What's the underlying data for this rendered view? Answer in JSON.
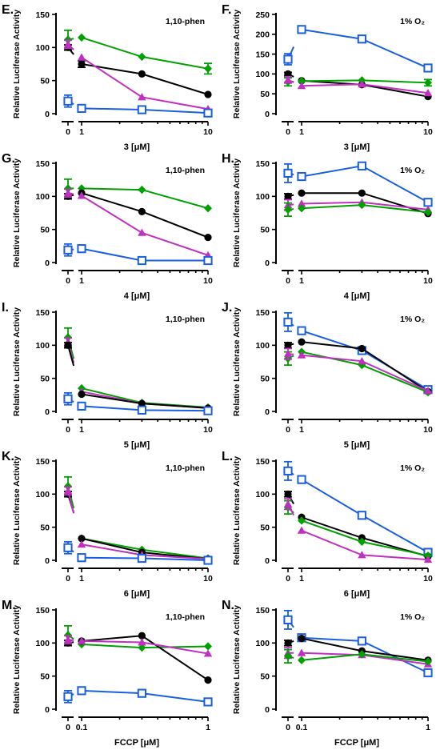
{
  "chart_data": [
    {
      "type": "line",
      "panel": "E.",
      "condition": "1,10-phen",
      "xlabel": "3 [μM]",
      "ylabel": "Relative Luciferase Activity",
      "ylim": [
        0,
        150
      ],
      "yticks": [
        "0",
        "50",
        "100",
        "150"
      ],
      "x": [
        1,
        3,
        10
      ],
      "xticks": [
        "0",
        "1",
        "10"
      ],
      "control_ticks": [
        "0"
      ],
      "series": [
        {
          "color": "#00a000",
          "marker": "diamond",
          "control": 112,
          "control_err": 14,
          "values": [
            115,
            86,
            68
          ],
          "errors": [
            0,
            0,
            8
          ]
        },
        {
          "color": "#000000",
          "marker": "circle",
          "control": 100,
          "control_err": 4,
          "values": [
            75,
            60,
            29
          ],
          "errors": [
            5,
            0,
            0
          ]
        },
        {
          "color": "#c030c0",
          "marker": "triangle",
          "control": 105,
          "control_err": 6,
          "values": [
            85,
            25,
            7
          ],
          "errors": [
            0,
            0,
            0
          ]
        },
        {
          "color": "#1a5fe0",
          "marker": "square",
          "control": 19,
          "control_err": 9,
          "values": [
            8,
            6,
            1
          ],
          "errors": [
            0,
            0,
            0
          ]
        }
      ]
    },
    {
      "type": "line",
      "panel": "F.",
      "condition": "1% O₂",
      "xlabel": "3 [μM]",
      "ylabel": "Relative Luciferase Activity",
      "ylim": [
        0,
        250
      ],
      "yticks": [
        "0",
        "50",
        "100",
        "150",
        "200",
        "250"
      ],
      "x": [
        1,
        3,
        10
      ],
      "xticks": [
        "0",
        "1",
        "10"
      ],
      "control_ticks": [
        "0"
      ],
      "series": [
        {
          "color": "#1a5fe0",
          "marker": "square",
          "control": 137,
          "control_err": 14,
          "values": [
            212,
            188,
            115
          ],
          "errors": [
            0,
            0,
            0
          ]
        },
        {
          "color": "#000000",
          "marker": "circle",
          "control": 100,
          "control_err": 4,
          "values": [
            83,
            73,
            43
          ],
          "errors": [
            0,
            0,
            0
          ]
        },
        {
          "color": "#00a000",
          "marker": "diamond",
          "control": 80,
          "control_err": 10,
          "values": [
            82,
            84,
            78
          ],
          "errors": [
            0,
            0,
            8
          ]
        },
        {
          "color": "#c030c0",
          "marker": "triangle",
          "control": 85,
          "control_err": 8,
          "values": [
            70,
            74,
            52
          ],
          "errors": [
            0,
            0,
            0
          ]
        }
      ]
    },
    {
      "type": "line",
      "panel": "G.",
      "condition": "1,10-phen",
      "xlabel": "4 [μM]",
      "ylabel": "Relative Luciferase Activity",
      "ylim": [
        0,
        150
      ],
      "yticks": [
        "0",
        "50",
        "100",
        "150"
      ],
      "x": [
        1,
        3,
        10
      ],
      "xticks": [
        "0",
        "1",
        "10"
      ],
      "control_ticks": [
        "0"
      ],
      "series": [
        {
          "color": "#00a000",
          "marker": "diamond",
          "control": 112,
          "control_err": 14,
          "values": [
            112,
            110,
            82
          ],
          "errors": [
            0,
            0,
            0
          ]
        },
        {
          "color": "#000000",
          "marker": "circle",
          "control": 100,
          "control_err": 4,
          "values": [
            105,
            77,
            38
          ],
          "errors": [
            0,
            0,
            0
          ]
        },
        {
          "color": "#c030c0",
          "marker": "triangle",
          "control": 105,
          "control_err": 6,
          "values": [
            101,
            45,
            11
          ],
          "errors": [
            0,
            0,
            0
          ]
        },
        {
          "color": "#1a5fe0",
          "marker": "square",
          "control": 19,
          "control_err": 9,
          "values": [
            21,
            3,
            3
          ],
          "errors": [
            0,
            0,
            0
          ]
        }
      ]
    },
    {
      "type": "line",
      "panel": "H.",
      "condition": "1% O₂",
      "xlabel": "4 [μM]",
      "ylabel": "Relative Luciferase Activity",
      "ylim": [
        0,
        150
      ],
      "yticks": [
        "0",
        "50",
        "100",
        "150"
      ],
      "x": [
        1,
        3,
        10
      ],
      "xticks": [
        "0",
        "1",
        "10"
      ],
      "control_ticks": [
        "0"
      ],
      "series": [
        {
          "color": "#1a5fe0",
          "marker": "square",
          "control": 135,
          "control_err": 14,
          "values": [
            130,
            146,
            91
          ],
          "errors": [
            0,
            0,
            0
          ]
        },
        {
          "color": "#000000",
          "marker": "circle",
          "control": 100,
          "control_err": 4,
          "values": [
            105,
            105,
            74
          ],
          "errors": [
            0,
            0,
            0
          ]
        },
        {
          "color": "#c030c0",
          "marker": "triangle",
          "control": 87,
          "control_err": 8,
          "values": [
            89,
            91,
            80
          ],
          "errors": [
            0,
            0,
            0
          ]
        },
        {
          "color": "#00a000",
          "marker": "diamond",
          "control": 80,
          "control_err": 10,
          "values": [
            82,
            87,
            76
          ],
          "errors": [
            0,
            0,
            0
          ]
        }
      ]
    },
    {
      "type": "line",
      "panel": "I.",
      "condition": "1,10-phen",
      "xlabel": "5 [μM]",
      "ylabel": "Relative Luciferase Activity",
      "ylim": [
        0,
        150
      ],
      "yticks": [
        "0",
        "50",
        "100",
        "150"
      ],
      "x": [
        1,
        3,
        10
      ],
      "xticks": [
        "0",
        "1",
        "10"
      ],
      "control_ticks": [
        "0"
      ],
      "series": [
        {
          "color": "#00a000",
          "marker": "diamond",
          "control": 112,
          "control_err": 14,
          "values": [
            35,
            13,
            6
          ],
          "errors": [
            0,
            0,
            0
          ]
        },
        {
          "color": "#c030c0",
          "marker": "triangle",
          "control": 105,
          "control_err": 6,
          "values": [
            30,
            12,
            5
          ],
          "errors": [
            0,
            0,
            0
          ]
        },
        {
          "color": "#000000",
          "marker": "circle",
          "control": 100,
          "control_err": 4,
          "values": [
            26,
            12,
            5
          ],
          "errors": [
            0,
            0,
            0
          ]
        },
        {
          "color": "#1a5fe0",
          "marker": "square",
          "control": 19,
          "control_err": 9,
          "values": [
            8,
            2,
            1
          ],
          "errors": [
            0,
            0,
            0
          ]
        }
      ]
    },
    {
      "type": "line",
      "panel": "J.",
      "condition": "1% O₂",
      "xlabel": "5 [μM]",
      "ylabel": "Relative Luciferase Activity",
      "ylim": [
        0,
        150
      ],
      "yticks": [
        "0",
        "50",
        "100",
        "150"
      ],
      "x": [
        1,
        3,
        10
      ],
      "xticks": [
        "0",
        "1",
        "10"
      ],
      "control_ticks": [
        "0"
      ],
      "series": [
        {
          "color": "#1a5fe0",
          "marker": "square",
          "control": 135,
          "control_err": 14,
          "values": [
            122,
            92,
            33
          ],
          "errors": [
            0,
            0,
            0
          ]
        },
        {
          "color": "#000000",
          "marker": "circle",
          "control": 100,
          "control_err": 4,
          "values": [
            105,
            95,
            30
          ],
          "errors": [
            0,
            0,
            0
          ]
        },
        {
          "color": "#00a000",
          "marker": "diamond",
          "control": 80,
          "control_err": 10,
          "values": [
            90,
            70,
            29
          ],
          "errors": [
            0,
            0,
            0
          ]
        },
        {
          "color": "#c030c0",
          "marker": "triangle",
          "control": 87,
          "control_err": 8,
          "values": [
            85,
            76,
            31
          ],
          "errors": [
            0,
            0,
            0
          ]
        }
      ]
    },
    {
      "type": "line",
      "panel": "K.",
      "condition": "1,10-phen",
      "xlabel": "6 [μM]",
      "ylabel": "Relative Luciferase Activity",
      "ylim": [
        0,
        150
      ],
      "yticks": [
        "0",
        "50",
        "100",
        "150"
      ],
      "x": [
        1,
        3,
        10
      ],
      "xticks": [
        "0",
        "1",
        "10"
      ],
      "control_ticks": [
        "0"
      ],
      "series": [
        {
          "color": "#00a000",
          "marker": "diamond",
          "control": 112,
          "control_err": 14,
          "values": [
            33,
            16,
            3
          ],
          "errors": [
            0,
            0,
            0
          ]
        },
        {
          "color": "#000000",
          "marker": "circle",
          "control": 100,
          "control_err": 4,
          "values": [
            33,
            12,
            2
          ],
          "errors": [
            0,
            0,
            0
          ]
        },
        {
          "color": "#c030c0",
          "marker": "triangle",
          "control": 105,
          "control_err": 6,
          "values": [
            24,
            8,
            2
          ],
          "errors": [
            0,
            0,
            0
          ]
        },
        {
          "color": "#1a5fe0",
          "marker": "square",
          "control": 19,
          "control_err": 9,
          "values": [
            4,
            3,
            0
          ],
          "errors": [
            0,
            0,
            0
          ]
        }
      ]
    },
    {
      "type": "line",
      "panel": "L.",
      "condition": "1% O₂",
      "xlabel": "6 [μM]",
      "ylabel": "Relative Luciferase Activity",
      "ylim": [
        0,
        150
      ],
      "yticks": [
        "0",
        "50",
        "100",
        "150"
      ],
      "x": [
        1,
        3,
        10
      ],
      "xticks": [
        "0",
        "1",
        "10"
      ],
      "control_ticks": [
        "0"
      ],
      "series": [
        {
          "color": "#1a5fe0",
          "marker": "square",
          "control": 135,
          "control_err": 14,
          "values": [
            122,
            68,
            12
          ],
          "errors": [
            0,
            0,
            0
          ]
        },
        {
          "color": "#000000",
          "marker": "circle",
          "control": 100,
          "control_err": 4,
          "values": [
            65,
            34,
            6
          ],
          "errors": [
            0,
            0,
            0
          ]
        },
        {
          "color": "#00a000",
          "marker": "diamond",
          "control": 80,
          "control_err": 10,
          "values": [
            60,
            28,
            7
          ],
          "errors": [
            0,
            0,
            0
          ]
        },
        {
          "color": "#c030c0",
          "marker": "triangle",
          "control": 85,
          "control_err": 8,
          "values": [
            45,
            8,
            1
          ],
          "errors": [
            0,
            0,
            0
          ]
        }
      ]
    },
    {
      "type": "line",
      "panel": "M.",
      "condition": "1,10-phen",
      "xlabel": "FCCP [μM]",
      "ylabel": "Relative Luciferase Activity",
      "ylim": [
        0,
        150
      ],
      "yticks": [
        "0",
        "50",
        "100",
        "150"
      ],
      "x": [
        0.1,
        0.3,
        1
      ],
      "xticks": [
        "0",
        "0.1",
        "1"
      ],
      "control_ticks": [
        "0"
      ],
      "series": [
        {
          "color": "#00a000",
          "marker": "diamond",
          "control": 112,
          "control_err": 14,
          "values": [
            98,
            93,
            95
          ],
          "errors": [
            0,
            0,
            0
          ]
        },
        {
          "color": "#000000",
          "marker": "circle",
          "control": 100,
          "control_err": 4,
          "values": [
            103,
            111,
            44
          ],
          "errors": [
            0,
            0,
            0
          ]
        },
        {
          "color": "#c030c0",
          "marker": "triangle",
          "control": 105,
          "control_err": 6,
          "values": [
            103,
            101,
            84
          ],
          "errors": [
            0,
            0,
            0
          ]
        },
        {
          "color": "#1a5fe0",
          "marker": "square",
          "control": 19,
          "control_err": 9,
          "values": [
            28,
            24,
            11
          ],
          "errors": [
            0,
            0,
            0
          ]
        }
      ]
    },
    {
      "type": "line",
      "panel": "N.",
      "condition": "1% O₂",
      "xlabel": "FCCP [μM]",
      "ylabel": "Relative Luciferase Activity",
      "ylim": [
        0,
        150
      ],
      "yticks": [
        "0",
        "50",
        "100",
        "150"
      ],
      "x": [
        0.1,
        0.3,
        1
      ],
      "xticks": [
        "0",
        "0.1",
        "1"
      ],
      "control_ticks": [
        "0"
      ],
      "series": [
        {
          "color": "#1a5fe0",
          "marker": "square",
          "control": 135,
          "control_err": 14,
          "values": [
            108,
            103,
            55
          ],
          "errors": [
            0,
            0,
            0
          ]
        },
        {
          "color": "#000000",
          "marker": "circle",
          "control": 100,
          "control_err": 4,
          "values": [
            107,
            88,
            74
          ],
          "errors": [
            0,
            0,
            0
          ]
        },
        {
          "color": "#c030c0",
          "marker": "triangle",
          "control": 85,
          "control_err": 8,
          "values": [
            85,
            82,
            68
          ],
          "errors": [
            0,
            0,
            0
          ]
        },
        {
          "color": "#00a000",
          "marker": "diamond",
          "control": 80,
          "control_err": 10,
          "values": [
            74,
            83,
            72
          ],
          "errors": [
            0,
            0,
            0
          ]
        }
      ]
    }
  ]
}
